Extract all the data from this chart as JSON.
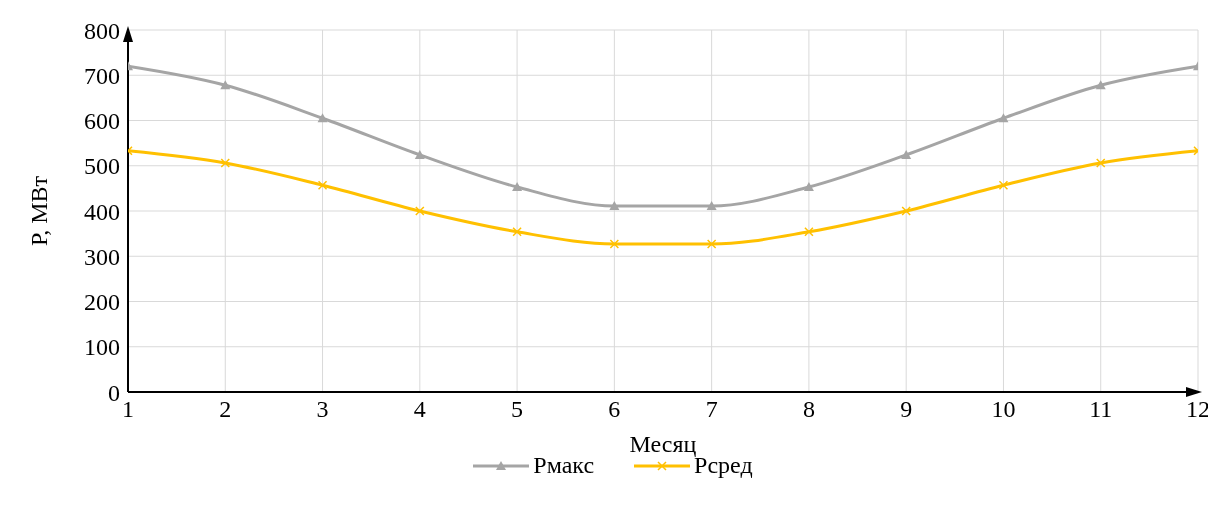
{
  "chart_data": {
    "type": "line",
    "xlabel": "Месяц",
    "ylabel": "Р, МВт",
    "x": [
      1,
      2,
      3,
      4,
      5,
      6,
      7,
      8,
      9,
      10,
      11,
      12
    ],
    "series": [
      {
        "name": "Рмакс",
        "color": "#a5a5a5",
        "marker": "triangle",
        "values": [
          720,
          678,
          605,
          524,
          453,
          411,
          411,
          453,
          524,
          605,
          678,
          720
        ]
      },
      {
        "name": "Рсред",
        "color": "#ffc000",
        "marker": "cross",
        "values": [
          533,
          506,
          457,
          400,
          354,
          327,
          327,
          354,
          400,
          457,
          506,
          533
        ]
      }
    ],
    "xlim": [
      1,
      12
    ],
    "xticks": [
      1,
      2,
      3,
      4,
      5,
      6,
      7,
      8,
      9,
      10,
      11,
      12
    ],
    "ylim": [
      0,
      800
    ],
    "yticks": [
      0,
      100,
      200,
      300,
      400,
      500,
      600,
      700,
      800
    ],
    "grid": true,
    "legend": "bottom",
    "line_style": "solid"
  }
}
